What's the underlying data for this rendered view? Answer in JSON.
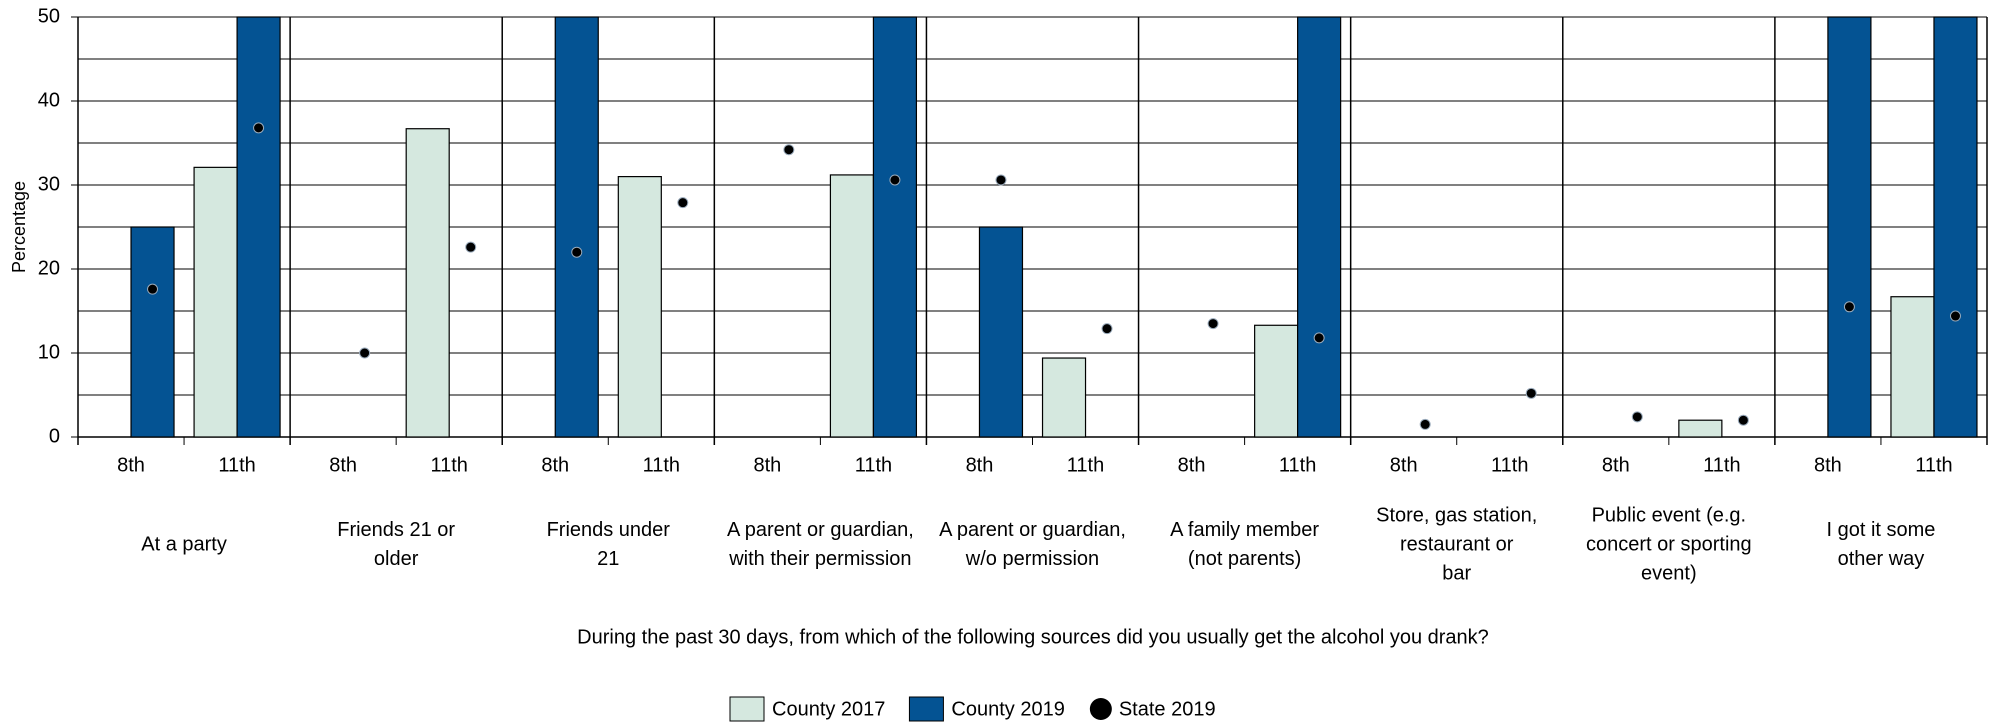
{
  "chart_data": {
    "type": "bar",
    "y_label": "Percentage",
    "x_label": "During the past 30 days, from which of the following sources did you usually get the alcohol you drank?",
    "groups": [
      [
        "At a party"
      ],
      [
        "Friends 21 or",
        "older"
      ],
      [
        "Friends under",
        "21"
      ],
      [
        "A parent or guardian,",
        "with their permission"
      ],
      [
        "A parent or guardian,",
        "w/o permission"
      ],
      [
        "A family member",
        "(not parents)"
      ],
      [
        "Store, gas station,",
        "restaurant or",
        "bar"
      ],
      [
        "Public event (e.g.",
        "concert or sporting",
        "event)"
      ],
      [
        "I got it some",
        "other way"
      ]
    ],
    "categories": [
      "8th",
      "11th",
      "8th",
      "11th",
      "8th",
      "11th",
      "8th",
      "11th",
      "8th",
      "11th",
      "8th",
      "11th",
      "8th",
      "11th",
      "8th",
      "11th",
      "8th",
      "11th"
    ],
    "series": [
      {
        "name": "County 2017",
        "color": "#d5e8df",
        "kind": "bar",
        "values": [
          null,
          32.1,
          null,
          36.7,
          null,
          31.0,
          null,
          31.2,
          null,
          9.4,
          null,
          13.3,
          null,
          null,
          null,
          2.0,
          null,
          16.7
        ]
      },
      {
        "name": "County 2019",
        "color": "#045393",
        "kind": "bar",
        "values": [
          25,
          50,
          null,
          null,
          50,
          null,
          null,
          50,
          25,
          null,
          null,
          50,
          null,
          null,
          null,
          null,
          50,
          50
        ]
      },
      {
        "name": "State 2019",
        "color": "#000000",
        "kind": "dot",
        "values": [
          17.6,
          36.8,
          10.0,
          22.6,
          22.0,
          27.9,
          34.2,
          30.6,
          30.6,
          12.9,
          13.5,
          11.8,
          1.5,
          5.2,
          2.4,
          2.0,
          15.5,
          14.4
        ]
      }
    ],
    "ylim": [
      0,
      50
    ],
    "yticks": [
      0,
      10,
      20,
      30,
      40,
      50
    ],
    "minor_yticks": [
      5,
      15,
      25,
      35,
      45
    ],
    "grid": true
  }
}
